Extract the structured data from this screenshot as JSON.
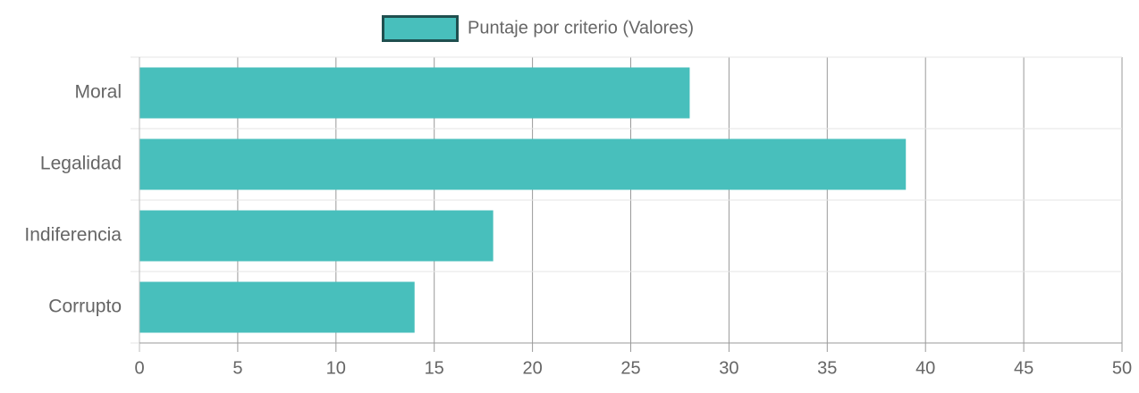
{
  "chart_data": {
    "type": "bar",
    "orientation": "horizontal",
    "categories": [
      "Moral",
      "Legalidad",
      "Indiferencia",
      "Corrupto"
    ],
    "series": [
      {
        "name": "Puntaje por criterio (Valores)",
        "values": [
          28,
          39,
          18,
          14
        ],
        "color": "#48bfbc",
        "border_color": "#1f4f4f"
      }
    ],
    "x_ticks": [
      "0",
      "5",
      "10",
      "15",
      "20",
      "25",
      "30",
      "35",
      "40",
      "45",
      "50"
    ],
    "xlim": [
      0,
      50
    ],
    "legend_position": "top",
    "grid": true
  }
}
